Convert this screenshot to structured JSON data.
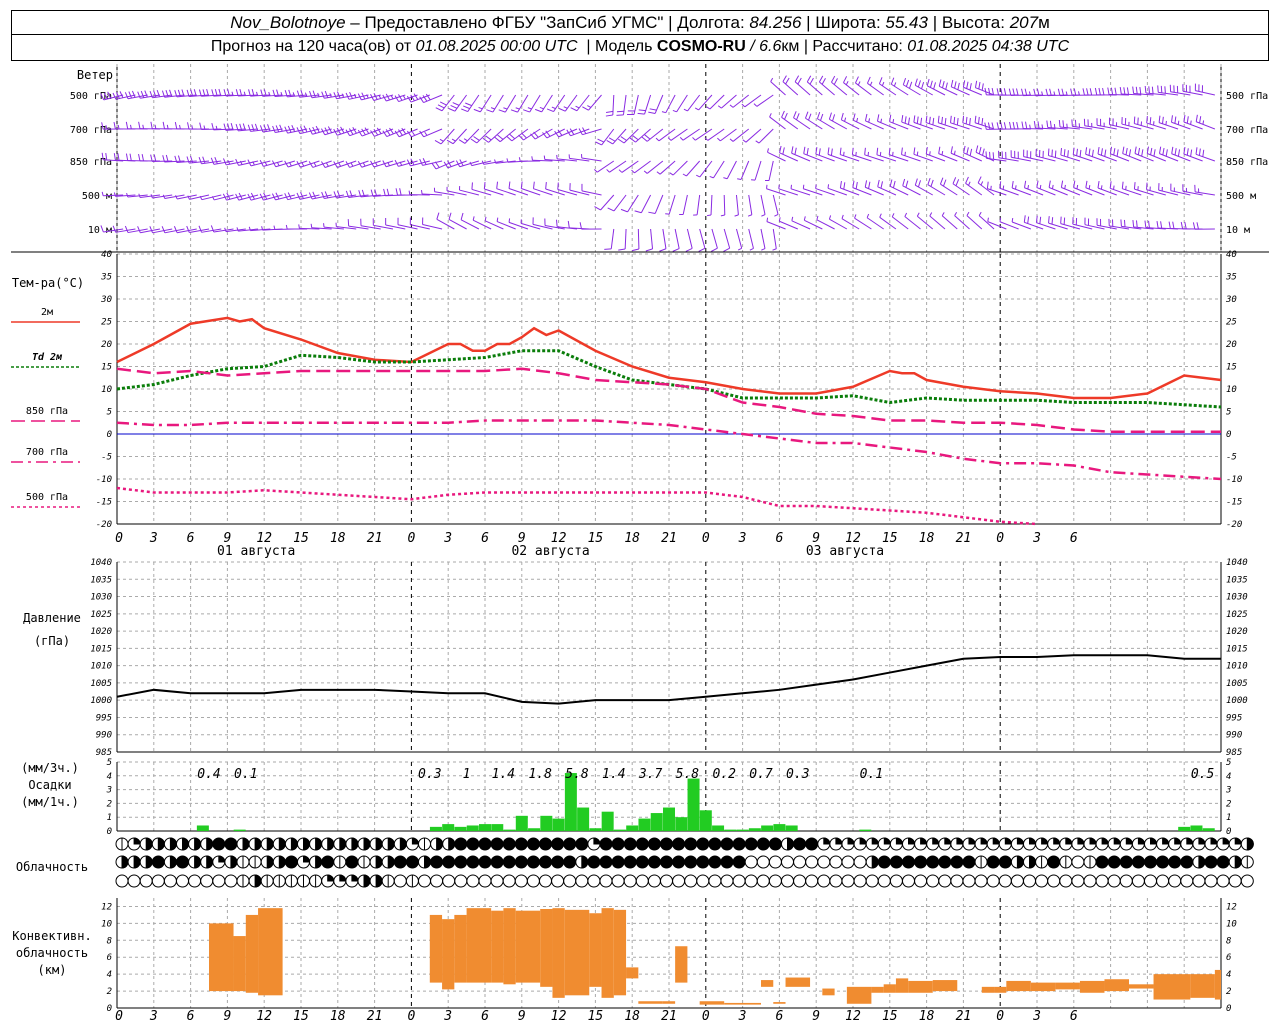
{
  "header": {
    "station": "Nov_Bolotnoye",
    "provided_by": "Предоставлено ФГБУ \"ЗапСиб УГМС\"",
    "lon_label": "Долгота:",
    "lon": "84.256",
    "lat_label": "Широта:",
    "lat": "55.43",
    "alt_label": "Высота:",
    "alt": "207",
    "alt_unit": "м",
    "forecast_prefix": "Прогноз на 120 часа(ов) от",
    "forecast_time": "01.08.2025 00:00 UTC",
    "model_label": "Модель",
    "model": "COSMO-RU",
    "model_res": "/ 6.6",
    "model_res_unit": "км",
    "computed_label": "Рассчитано:",
    "computed_time": "01.08.2025 04:38 UTC"
  },
  "colors": {
    "t2m": "#ee3a28",
    "td2m": "#0a7d0a",
    "t850": "#e8187e",
    "t700": "#e8187e",
    "t500": "#e8187e",
    "wind": "#8a2be2",
    "zero": "#0000cc",
    "precip": "#22cc22",
    "conv": "#f08c30",
    "grid": "#aaaaaa"
  },
  "chart_data": [
    {
      "name": "wind",
      "type": "barbs",
      "title": "Ветер",
      "levels": [
        "500 гПа",
        "700 гПа",
        "850 гПа",
        "500  м",
        "10   м"
      ],
      "approx_speed_ms": [
        [
          10,
          10,
          12,
          12,
          12,
          10,
          8,
          8,
          6,
          5,
          5,
          6,
          8,
          10,
          10,
          12,
          14,
          14
        ],
        [
          8,
          8,
          10,
          10,
          10,
          8,
          7,
          6,
          6,
          5,
          5,
          6,
          8,
          10,
          10,
          12,
          12,
          12
        ],
        [
          6,
          6,
          8,
          8,
          8,
          6,
          5,
          5,
          4,
          5,
          5,
          6,
          8,
          8,
          10,
          10,
          10,
          10
        ],
        [
          5,
          5,
          6,
          6,
          6,
          4,
          3,
          3,
          3,
          4,
          5,
          5,
          6,
          7,
          8,
          8,
          8,
          8
        ],
        [
          3,
          3,
          4,
          4,
          3,
          2,
          1,
          2,
          2,
          3,
          4,
          4,
          5,
          5,
          5,
          6,
          6,
          6
        ]
      ]
    },
    {
      "name": "temperature",
      "type": "line",
      "ylabel": "Тем-ра(°C)",
      "ylim": [
        -20,
        40
      ],
      "yticks": [
        -20,
        -15,
        -10,
        -5,
        0,
        5,
        10,
        15,
        20,
        25,
        30,
        35,
        40
      ],
      "xticks": [
        "0",
        "3",
        "6",
        "9",
        "12",
        "15",
        "18",
        "21",
        "0",
        "3",
        "6",
        "9",
        "12",
        "15",
        "18",
        "21",
        "0",
        "3",
        "6",
        "9",
        "12",
        "15",
        "18",
        "21",
        "0",
        "3",
        "6"
      ],
      "day_labels": [
        "01 августа",
        "02 августа",
        "03 августа"
      ],
      "series": [
        {
          "name": "2м",
          "hours": [
            0,
            3,
            6,
            9,
            10,
            11,
            12,
            15,
            18,
            21,
            24,
            27,
            28,
            29,
            30,
            31,
            32,
            33,
            34,
            35,
            36,
            39,
            42,
            45,
            48,
            51,
            54,
            57,
            60,
            63,
            64,
            65,
            66,
            69,
            72,
            75,
            78,
            81,
            84,
            87,
            90
          ],
          "values": [
            16,
            20,
            24.5,
            25.8,
            25,
            25.5,
            23.5,
            21,
            18,
            16.5,
            16,
            20,
            20,
            18.5,
            18.5,
            20,
            20,
            21.5,
            23.5,
            22,
            23,
            18.5,
            15,
            12.5,
            11.5,
            10,
            9,
            9,
            10.5,
            14,
            13.5,
            13.5,
            12,
            10.5,
            9.5,
            9,
            8,
            8,
            9,
            13,
            12
          ]
        },
        {
          "name": "Td 2м",
          "hours": [
            0,
            3,
            6,
            9,
            12,
            15,
            18,
            21,
            24,
            27,
            30,
            33,
            36,
            39,
            42,
            45,
            48,
            51,
            54,
            57,
            60,
            63,
            66,
            69,
            72,
            75,
            78,
            81,
            84,
            87,
            90
          ],
          "values": [
            10,
            11,
            13,
            14.5,
            15,
            17.5,
            17,
            16,
            16,
            16.5,
            17,
            18.5,
            18.5,
            15,
            12,
            11,
            10,
            8,
            8,
            8,
            8.5,
            7,
            8,
            7.5,
            7.5,
            7.5,
            7,
            7,
            7,
            6.5,
            6
          ]
        },
        {
          "name": "850 гПа",
          "hours": [
            0,
            3,
            6,
            9,
            12,
            15,
            18,
            21,
            24,
            27,
            30,
            33,
            36,
            39,
            42,
            45,
            48,
            51,
            54,
            57,
            60,
            63,
            66,
            69,
            72,
            75,
            78,
            81,
            84,
            87,
            90
          ],
          "values": [
            14.5,
            13.5,
            14,
            13,
            13.5,
            14,
            14,
            14,
            14,
            14,
            14,
            14.5,
            13.5,
            12,
            11.5,
            11,
            10,
            7,
            6,
            4.5,
            4,
            3,
            3,
            2.5,
            2.5,
            2,
            1,
            0.5,
            0.5,
            0.5,
            0.5
          ]
        },
        {
          "name": "700 гПа",
          "hours": [
            0,
            3,
            6,
            9,
            12,
            15,
            18,
            21,
            24,
            27,
            30,
            33,
            36,
            39,
            42,
            45,
            48,
            51,
            54,
            57,
            60,
            63,
            66,
            69,
            72,
            75,
            78,
            81,
            84,
            87,
            90
          ],
          "values": [
            2.5,
            2,
            2,
            2.5,
            2.5,
            2.5,
            2.5,
            2.5,
            2.5,
            2.5,
            3,
            3,
            3,
            3,
            2.5,
            2,
            1,
            0,
            -1,
            -2,
            -2,
            -3,
            -4,
            -5.5,
            -6.5,
            -6.5,
            -7,
            -8.5,
            -9,
            -9.5,
            -10
          ]
        },
        {
          "name": "500 гПа",
          "hours": [
            0,
            3,
            6,
            9,
            12,
            15,
            18,
            21,
            24,
            27,
            30,
            33,
            36,
            39,
            42,
            45,
            48,
            51,
            54,
            57,
            60,
            63,
            66,
            69,
            72,
            75
          ],
          "values": [
            -12,
            -13,
            -13,
            -13,
            -12.5,
            -13,
            -13.5,
            -14,
            -14.5,
            -13.5,
            -13,
            -13,
            -13,
            -13,
            -13,
            -13,
            -13,
            -14,
            -16,
            -16,
            -16.5,
            -17,
            -17.5,
            -18.5,
            -19.5,
            -20
          ]
        }
      ]
    },
    {
      "name": "pressure",
      "type": "line",
      "ylabel": "Давление",
      "unit": "(гПа)",
      "ylim": [
        985,
        1040
      ],
      "yticks": [
        985,
        990,
        995,
        1000,
        1005,
        1010,
        1015,
        1020,
        1025,
        1030,
        1035,
        1040
      ],
      "hours": [
        0,
        3,
        6,
        9,
        12,
        15,
        18,
        21,
        24,
        27,
        30,
        33,
        36,
        39,
        42,
        45,
        48,
        51,
        54,
        57,
        60,
        63,
        66,
        69,
        72,
        75,
        78,
        81,
        84,
        87,
        90
      ],
      "values": [
        1001,
        1003,
        1002,
        1002,
        1002,
        1003,
        1003,
        1003,
        1002.5,
        1002,
        1002,
        999.5,
        999,
        1000,
        1000,
        1000,
        1001,
        1002,
        1003,
        1004.5,
        1006,
        1008,
        1010,
        1012,
        1012.5,
        1012.5,
        1013,
        1013,
        1013,
        1012,
        1012
      ]
    },
    {
      "name": "precipitation",
      "type": "bar",
      "ylabel": [
        "(мм/3ч.)",
        "Осадки",
        "(мм/1ч.)"
      ],
      "ylim": [
        0,
        5
      ],
      "yticks": [
        0,
        1,
        2,
        3,
        4,
        5
      ],
      "totals": [
        {
          "hour": 7.5,
          "label": "0.4"
        },
        {
          "hour": 10.5,
          "label": "0.1"
        },
        {
          "hour": 25.5,
          "label": "0.3"
        },
        {
          "hour": 28.5,
          "label": "1"
        },
        {
          "hour": 31.5,
          "label": "1.4"
        },
        {
          "hour": 34.5,
          "label": "1.8"
        },
        {
          "hour": 37.5,
          "label": "5.8"
        },
        {
          "hour": 40.5,
          "label": "1.4"
        },
        {
          "hour": 43.5,
          "label": "3.7"
        },
        {
          "hour": 46.5,
          "label": "5.8"
        },
        {
          "hour": 49.5,
          "label": "0.2"
        },
        {
          "hour": 52.5,
          "label": "0.7"
        },
        {
          "hour": 55.5,
          "label": "0.3"
        },
        {
          "hour": 61.5,
          "label": "0.1"
        },
        {
          "hour": 88.5,
          "label": "0.5"
        }
      ],
      "hours": [
        7,
        10,
        26,
        27,
        28,
        29,
        30,
        31,
        32,
        33,
        34,
        35,
        36,
        37,
        38,
        39,
        40,
        41,
        42,
        43,
        44,
        45,
        46,
        47,
        48,
        49,
        50,
        51,
        52,
        53,
        54,
        55,
        61,
        87,
        88,
        89
      ],
      "values": [
        0.4,
        0.1,
        0.3,
        0.5,
        0.3,
        0.4,
        0.5,
        0.5,
        0.1,
        1.1,
        0.2,
        1.1,
        0.9,
        4.2,
        1.7,
        0.2,
        1.4,
        0.1,
        0.4,
        0.9,
        1.3,
        1.7,
        1.0,
        3.8,
        1.5,
        0.4,
        0.1,
        0.1,
        0.2,
        0.4,
        0.5,
        0.4,
        0.1,
        0.3,
        0.4,
        0.2
      ]
    },
    {
      "name": "cloudiness",
      "type": "symbols",
      "ylabel": "Облачность",
      "rows": [
        "1233333344333333333333332133444444444442444444444444444344222222222222222222222222222222222223",
        "3334343323113342341413344344444444444434444444444444000000000034444444414433141014444444434431",
        "0000000000131111122233101000000000000000000000000000000000000000000000000000000000000000000000"
      ]
    },
    {
      "name": "convective_cloud",
      "type": "range_bar",
      "ylabel": [
        "Конвективн.",
        "облачность",
        "(км)"
      ],
      "ylim": [
        0,
        13
      ],
      "yticks": [
        0,
        2,
        4,
        6,
        8,
        10,
        12
      ],
      "bars": [
        {
          "h0": 7.5,
          "h1": 9.5,
          "bottom": 2,
          "top": 10
        },
        {
          "h0": 9.5,
          "h1": 10.5,
          "bottom": 2,
          "top": 8.5
        },
        {
          "h0": 10.5,
          "h1": 11.5,
          "bottom": 1.8,
          "top": 11
        },
        {
          "h0": 11.5,
          "h1": 13.5,
          "bottom": 1.5,
          "top": 11.8
        },
        {
          "h0": 25.5,
          "h1": 26.5,
          "bottom": 3,
          "top": 11
        },
        {
          "h0": 26.5,
          "h1": 27.5,
          "bottom": 2.2,
          "top": 10.5
        },
        {
          "h0": 27.5,
          "h1": 28.5,
          "bottom": 3,
          "top": 11
        },
        {
          "h0": 28.5,
          "h1": 30.5,
          "bottom": 3,
          "top": 11.8
        },
        {
          "h0": 30.5,
          "h1": 31.5,
          "bottom": 3,
          "top": 11.5
        },
        {
          "h0": 31.5,
          "h1": 32.5,
          "bottom": 2.8,
          "top": 11.8
        },
        {
          "h0": 32.5,
          "h1": 34.5,
          "bottom": 3,
          "top": 11.5
        },
        {
          "h0": 34.5,
          "h1": 35.5,
          "bottom": 2.5,
          "top": 11.7
        },
        {
          "h0": 35.5,
          "h1": 36.5,
          "bottom": 1.2,
          "top": 11.8
        },
        {
          "h0": 36.5,
          "h1": 38.5,
          "bottom": 1.5,
          "top": 11.6
        },
        {
          "h0": 38.5,
          "h1": 39.5,
          "bottom": 2.5,
          "top": 11.2
        },
        {
          "h0": 39.5,
          "h1": 40.5,
          "bottom": 1.2,
          "top": 11.8
        },
        {
          "h0": 40.5,
          "h1": 41.5,
          "bottom": 1.5,
          "top": 11.6
        },
        {
          "h0": 41.5,
          "h1": 42.5,
          "bottom": 3.5,
          "top": 4.8
        },
        {
          "h0": 42.5,
          "h1": 44.5,
          "bottom": 0.5,
          "top": 0.8
        },
        {
          "h0": 44.5,
          "h1": 45.5,
          "bottom": 0.5,
          "top": 0.8
        },
        {
          "h0": 45.5,
          "h1": 46.5,
          "bottom": 3,
          "top": 7.3
        },
        {
          "h0": 47.5,
          "h1": 49.5,
          "bottom": 0.4,
          "top": 0.8
        },
        {
          "h0": 49.5,
          "h1": 52.5,
          "bottom": 0.4,
          "top": 0.6
        },
        {
          "h0": 52.5,
          "h1": 53.5,
          "bottom": 2.5,
          "top": 3.3
        },
        {
          "h0": 53.5,
          "h1": 54.5,
          "bottom": 0.5,
          "top": 0.7
        },
        {
          "h0": 54.5,
          "h1": 56.5,
          "bottom": 2.5,
          "top": 3.6
        },
        {
          "h0": 57.5,
          "h1": 58.5,
          "bottom": 1.5,
          "top": 2.3
        },
        {
          "h0": 59.5,
          "h1": 61.5,
          "bottom": 0.5,
          "top": 2.5
        },
        {
          "h0": 61.5,
          "h1": 62.5,
          "bottom": 1.8,
          "top": 2.5
        },
        {
          "h0": 62.5,
          "h1": 63.5,
          "bottom": 1.8,
          "top": 2.8
        },
        {
          "h0": 63.5,
          "h1": 64.5,
          "bottom": 1.8,
          "top": 3.5
        },
        {
          "h0": 64.5,
          "h1": 66.5,
          "bottom": 1.8,
          "top": 3.2
        },
        {
          "h0": 66.5,
          "h1": 68.5,
          "bottom": 2,
          "top": 3.3
        },
        {
          "h0": 70.5,
          "h1": 71.5,
          "bottom": 1.8,
          "top": 2.5
        },
        {
          "h0": 71.5,
          "h1": 72.5,
          "bottom": 1.8,
          "top": 2.5
        },
        {
          "h0": 72.5,
          "h1": 74.5,
          "bottom": 2,
          "top": 3.2
        },
        {
          "h0": 74.5,
          "h1": 76.5,
          "bottom": 2,
          "top": 3
        },
        {
          "h0": 76.5,
          "h1": 78.5,
          "bottom": 2.2,
          "top": 3
        },
        {
          "h0": 78.5,
          "h1": 80.5,
          "bottom": 1.8,
          "top": 3.2
        },
        {
          "h0": 80.5,
          "h1": 82.5,
          "bottom": 2,
          "top": 3.4
        },
        {
          "h0": 82.5,
          "h1": 84.5,
          "bottom": 2.3,
          "top": 2.8
        },
        {
          "h0": 84.5,
          "h1": 87.5,
          "bottom": 1,
          "top": 4
        },
        {
          "h0": 87.5,
          "h1": 89.5,
          "bottom": 1.2,
          "top": 4
        },
        {
          "h0": 89.5,
          "h1": 90,
          "bottom": 1,
          "top": 4.5
        }
      ]
    }
  ]
}
